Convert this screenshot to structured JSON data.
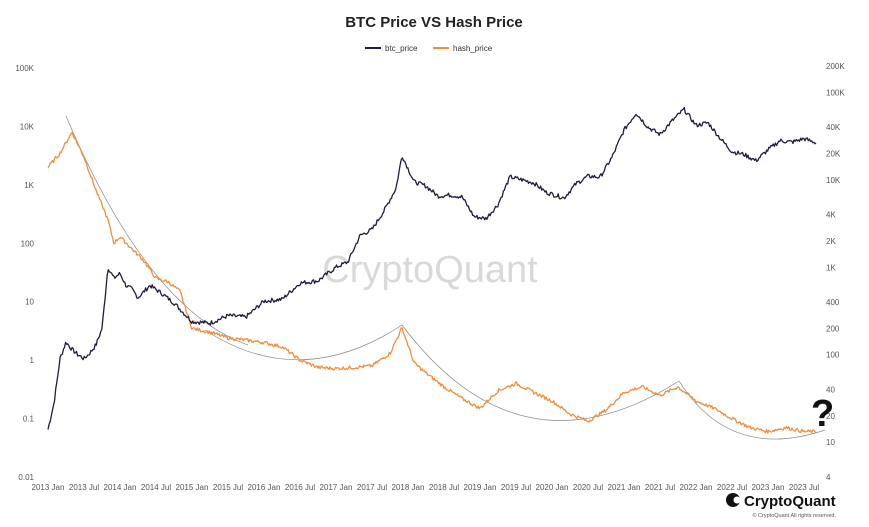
{
  "chart_data": {
    "type": "line",
    "title": "BTC Price VS Hash Price",
    "x_ticks": [
      "2013 Jan",
      "2013 Jul",
      "2014 Jan",
      "2014 Jul",
      "2015 Jan",
      "2015 Jul",
      "2016 Jan",
      "2016 Jul",
      "2017 Jan",
      "2017 Jul",
      "2018 Jan",
      "2018 Jul",
      "2019 Jan",
      "2019 Jul",
      "2020 Jan",
      "2020 Jul",
      "2021 Jan",
      "2021 Jul",
      "2022 Jan",
      "2022 Jul",
      "2023 Jan",
      "2023 Jul"
    ],
    "y_left": {
      "scale": "log",
      "ticks": [
        "100K",
        "10K",
        "1K",
        "100",
        "10",
        "1",
        "0.1",
        "0.01"
      ],
      "range": [
        0.01,
        100000
      ]
    },
    "y_right": {
      "scale": "log",
      "ticks": [
        "200K",
        "100K",
        "40K",
        "20K",
        "10K",
        "4K",
        "2K",
        "1K",
        "400",
        "200",
        "100",
        "40",
        "20",
        "10",
        "4"
      ],
      "range": [
        4,
        200000
      ]
    },
    "legend_position": "top-center",
    "grid": false,
    "series": [
      {
        "name": "btc_price",
        "axis": "right",
        "color": "#1f1d3d",
        "x": [
          "2013-01",
          "2013-02",
          "2013-03",
          "2013-04",
          "2013-05",
          "2013-06",
          "2013-07",
          "2013-08",
          "2013-09",
          "2013-10",
          "2013-11",
          "2013-12",
          "2014-01",
          "2014-02",
          "2014-03",
          "2014-04",
          "2014-06",
          "2014-08",
          "2014-10",
          "2015-01",
          "2015-04",
          "2015-07",
          "2015-10",
          "2016-01",
          "2016-04",
          "2016-07",
          "2016-10",
          "2017-01",
          "2017-03",
          "2017-05",
          "2017-07",
          "2017-09",
          "2017-11",
          "2017-12",
          "2018-02",
          "2018-04",
          "2018-06",
          "2018-08",
          "2018-10",
          "2018-12",
          "2019-02",
          "2019-04",
          "2019-06",
          "2019-08",
          "2019-10",
          "2019-12",
          "2020-03",
          "2020-05",
          "2020-07",
          "2020-09",
          "2020-11",
          "2021-01",
          "2021-03",
          "2021-05",
          "2021-07",
          "2021-09",
          "2021-11",
          "2022-01",
          "2022-03",
          "2022-05",
          "2022-07",
          "2022-09",
          "2022-11",
          "2023-01",
          "2023-03",
          "2023-05",
          "2023-07",
          "2023-09"
        ],
        "values": [
          14,
          28,
          90,
          140,
          115,
          100,
          90,
          105,
          130,
          200,
          1000,
          750,
          850,
          620,
          560,
          450,
          620,
          500,
          390,
          240,
          230,
          280,
          270,
          410,
          430,
          660,
          700,
          1000,
          1150,
          2300,
          2700,
          4400,
          8000,
          19000,
          9500,
          8500,
          6500,
          6700,
          6400,
          3800,
          3600,
          5200,
          10800,
          10000,
          9200,
          7200,
          6200,
          9000,
          11000,
          10700,
          18000,
          37000,
          58000,
          40000,
          33000,
          47000,
          64000,
          42000,
          45000,
          30000,
          21000,
          19500,
          16500,
          22000,
          28000,
          27000,
          29500,
          26500
        ]
      },
      {
        "name": "hash_price",
        "axis": "left",
        "color": "#f28e3c",
        "x": [
          "2013-01",
          "2013-03",
          "2013-05",
          "2013-07",
          "2013-09",
          "2013-11",
          "2013-12",
          "2014-01",
          "2014-03",
          "2014-05",
          "2014-07",
          "2014-09",
          "2014-11",
          "2015-01",
          "2015-04",
          "2015-07",
          "2015-10",
          "2016-01",
          "2016-04",
          "2016-07",
          "2016-10",
          "2017-01",
          "2017-04",
          "2017-07",
          "2017-10",
          "2017-12",
          "2018-02",
          "2018-04",
          "2018-07",
          "2018-10",
          "2019-01",
          "2019-04",
          "2019-07",
          "2019-10",
          "2020-01",
          "2020-04",
          "2020-07",
          "2020-10",
          "2021-01",
          "2021-04",
          "2021-07",
          "2021-10",
          "2022-01",
          "2022-04",
          "2022-07",
          "2022-10",
          "2023-01",
          "2023-04",
          "2023-07",
          "2023-09"
        ],
        "values": [
          2000,
          3500,
          8000,
          3000,
          800,
          250,
          100,
          130,
          80,
          50,
          25,
          22,
          15,
          3.5,
          3.0,
          2.4,
          2.2,
          2.0,
          1.7,
          1.0,
          0.75,
          0.72,
          0.75,
          0.8,
          1.3,
          3.6,
          0.9,
          0.6,
          0.35,
          0.22,
          0.15,
          0.3,
          0.4,
          0.28,
          0.2,
          0.12,
          0.09,
          0.14,
          0.28,
          0.35,
          0.25,
          0.35,
          0.2,
          0.15,
          0.1,
          0.07,
          0.06,
          0.07,
          0.06,
          0.06
        ]
      }
    ],
    "annotations": [
      "?"
    ]
  },
  "watermark": "CryptoQuant",
  "brand": {
    "name": "CryptoQuant",
    "rights": "© CryptoQuant All rights reserved."
  }
}
